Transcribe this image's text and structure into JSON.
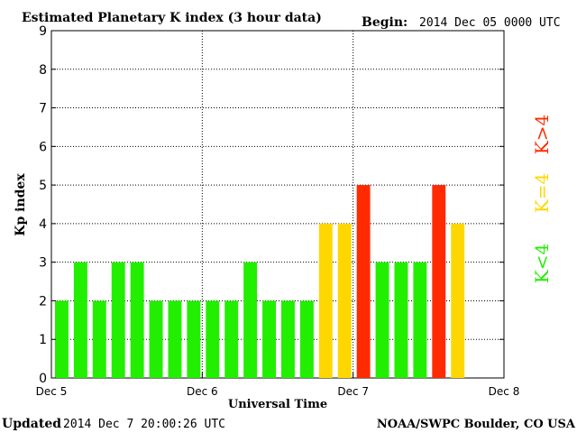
{
  "header": {
    "title": "Estimated Planetary K index (3 hour data)",
    "begin_label": "Begin:",
    "begin_value": "2014 Dec 05 0000 UTC"
  },
  "footer": {
    "updated_label": "Updated",
    "updated_value": "2014 Dec  7 20:00:26 UTC",
    "credit": "NOAA/SWPC Boulder, CO USA"
  },
  "legend": {
    "high": {
      "label": "K>4",
      "color": "#ff2a00"
    },
    "mid": {
      "label": "K=4",
      "color": "#ffd700"
    },
    "low": {
      "label": "K<4",
      "color": "#22ee00"
    }
  },
  "colors": {
    "low": "#22ee00",
    "mid": "#ffd700",
    "high": "#ff2a00"
  },
  "chart_data": {
    "type": "bar",
    "title": "Estimated Planetary K index (3 hour data)",
    "xlabel": "Universal Time",
    "ylabel": "Kp index",
    "ylim": [
      0,
      9
    ],
    "yticks": [
      "0",
      "1",
      "2",
      "3",
      "4",
      "5",
      "6",
      "7",
      "8",
      "9"
    ],
    "x_ticks": [
      "Dec 5",
      "Dec 6",
      "Dec 7",
      "Dec 8"
    ],
    "slots_per_day": 8,
    "grid": true,
    "values": [
      2,
      3,
      2,
      3,
      3,
      2,
      2,
      2,
      2,
      2,
      3,
      2,
      2,
      2,
      4,
      4,
      5,
      3,
      3,
      3,
      5,
      4
    ]
  }
}
